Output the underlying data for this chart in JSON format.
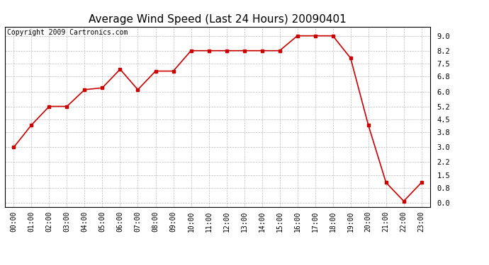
{
  "title": "Average Wind Speed (Last 24 Hours) 20090401",
  "copyright": "Copyright 2009 Cartronics.com",
  "hours": [
    "00:00",
    "01:00",
    "02:00",
    "03:00",
    "04:00",
    "05:00",
    "06:00",
    "07:00",
    "08:00",
    "09:00",
    "10:00",
    "11:00",
    "12:00",
    "13:00",
    "14:00",
    "15:00",
    "16:00",
    "17:00",
    "18:00",
    "19:00",
    "20:00",
    "21:00",
    "22:00",
    "23:00"
  ],
  "values": [
    3.0,
    4.2,
    5.2,
    5.2,
    6.1,
    6.2,
    7.2,
    6.1,
    7.1,
    7.1,
    8.2,
    8.2,
    8.2,
    8.2,
    8.2,
    8.2,
    9.0,
    9.0,
    9.0,
    7.8,
    4.2,
    1.1,
    0.1,
    1.1
  ],
  "line_color": "#cc0000",
  "marker": "s",
  "marker_size": 3,
  "bg_color": "#ffffff",
  "grid_color": "#bbbbbb",
  "yticks": [
    0.0,
    0.8,
    1.5,
    2.2,
    3.0,
    3.8,
    4.5,
    5.2,
    6.0,
    6.8,
    7.5,
    8.2,
    9.0
  ],
  "ylim": [
    -0.2,
    9.5
  ],
  "xlim": [
    -0.5,
    23.5
  ],
  "title_fontsize": 11,
  "copyright_fontsize": 7,
  "tick_fontsize": 7,
  "ytick_fontsize": 7.5
}
